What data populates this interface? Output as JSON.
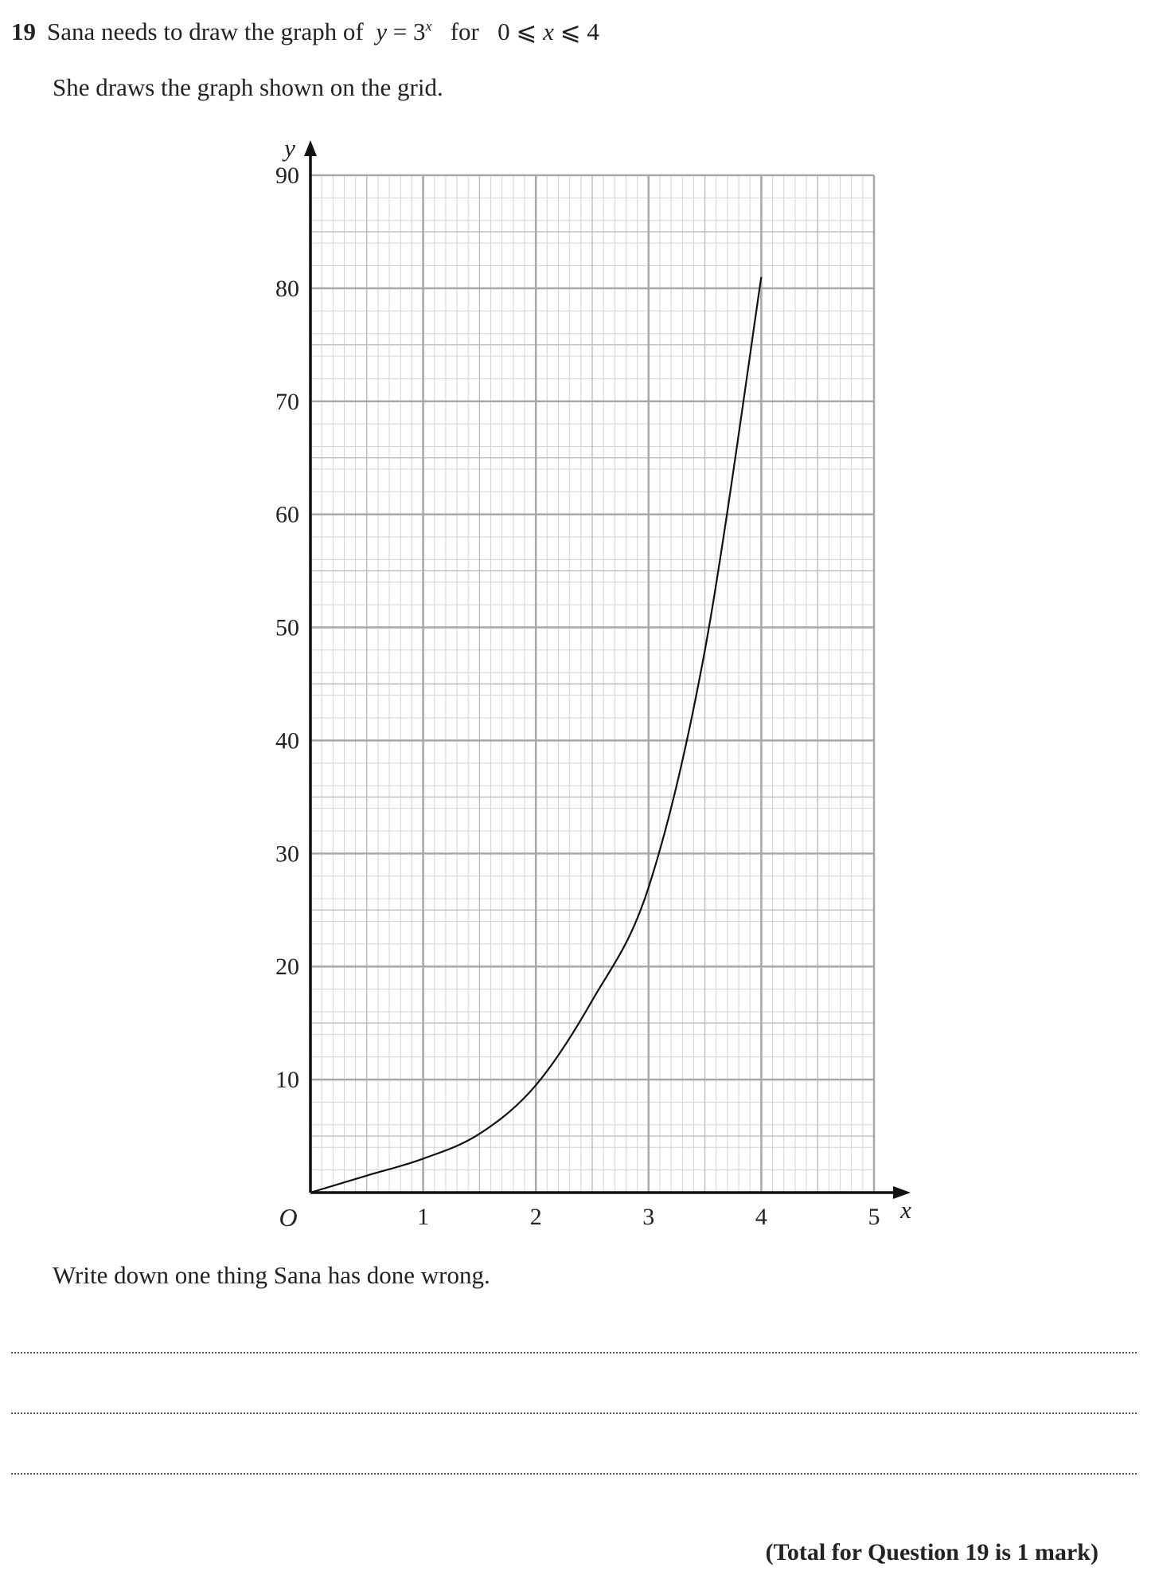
{
  "question": {
    "number": "19",
    "text_before": "Sana needs to draw the graph of",
    "equation_y": "y",
    "equation_eq": " = 3",
    "equation_exp": "x",
    "text_for": "for",
    "range_lo": "0",
    "range_op1": " ⩽ ",
    "range_var": "x",
    "range_op2": " ⩽ ",
    "range_hi": "4",
    "subtext": "She draws the graph shown on the grid."
  },
  "chart_data": {
    "type": "line",
    "xlabel": "x",
    "ylabel": "y",
    "origin_label": "O",
    "xlim": [
      0,
      5
    ],
    "ylim": [
      0,
      90
    ],
    "x_ticks": [
      "1",
      "2",
      "3",
      "4",
      "5"
    ],
    "y_ticks": [
      "10",
      "20",
      "30",
      "40",
      "50",
      "60",
      "70",
      "80",
      "90"
    ],
    "grid": true,
    "series": [
      {
        "x": [
          0,
          0.5,
          1,
          1.5,
          2,
          2.5,
          3,
          3.5,
          4
        ],
        "values": [
          0,
          1.5,
          3,
          5.2,
          9.5,
          17,
          27,
          48,
          81
        ]
      }
    ]
  },
  "instruction": "Write down one thing Sana has done wrong.",
  "answer_lines": 3,
  "total": "(Total for Question 19 is 1 mark)"
}
